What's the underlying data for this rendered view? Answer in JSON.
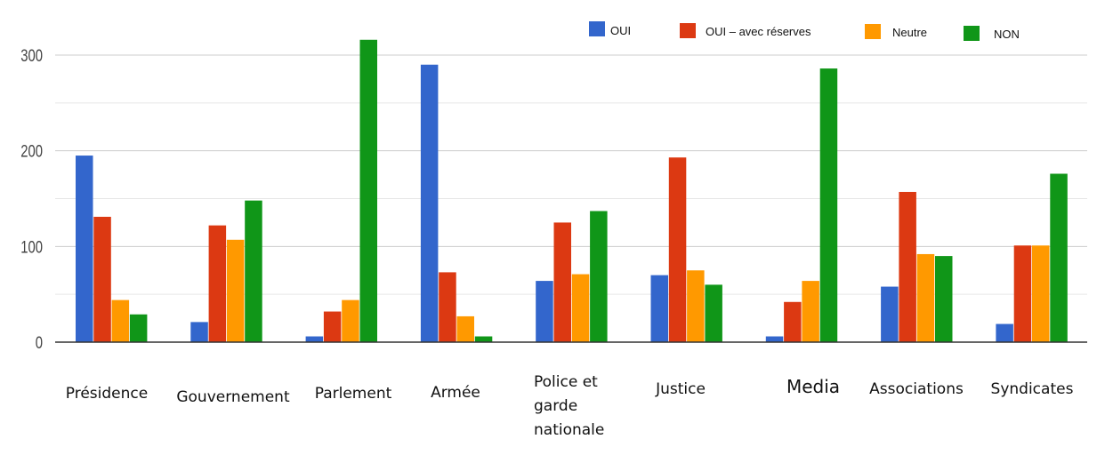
{
  "chart_data": {
    "type": "bar",
    "title": "",
    "xlabel": "",
    "ylabel": "",
    "ylim": [
      0,
      300
    ],
    "yticks": [
      "0",
      "100",
      "200",
      "300"
    ],
    "grid": true,
    "legend_position": "top-right",
    "categories": [
      [
        "Présidence"
      ],
      [
        "Gouvernement"
      ],
      [
        "Parlement"
      ],
      [
        "Armée"
      ],
      [
        "Police et",
        "garde",
        "nationale"
      ],
      [
        "Justice"
      ],
      [
        "Media"
      ],
      [
        "Associations"
      ],
      [
        "Syndicates"
      ]
    ],
    "series": [
      {
        "name": "OUI",
        "color": "#3366cc",
        "values": [
          195,
          21,
          6,
          290,
          64,
          70,
          6,
          58,
          19
        ]
      },
      {
        "name": "OUI – avec réserves",
        "color": "#dc3912",
        "values": [
          131,
          122,
          32,
          73,
          125,
          193,
          42,
          157,
          101
        ]
      },
      {
        "name": "Neutre",
        "color": "#ff9900",
        "values": [
          44,
          107,
          44,
          27,
          71,
          75,
          64,
          92,
          101
        ]
      },
      {
        "name": "NON",
        "color": "#109618",
        "values": [
          29,
          148,
          316,
          6,
          137,
          60,
          286,
          90,
          176
        ]
      }
    ]
  }
}
